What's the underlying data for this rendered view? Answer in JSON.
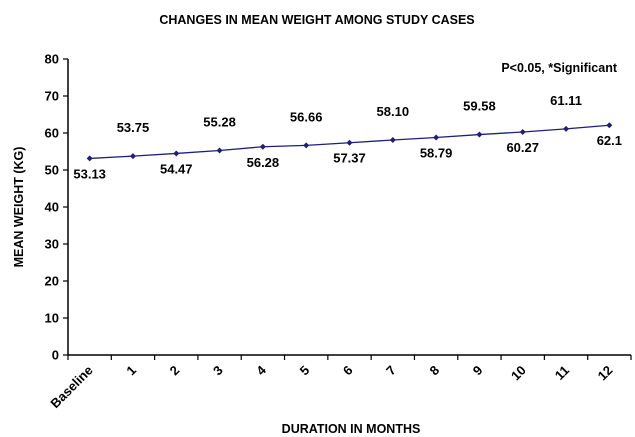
{
  "chart_data": {
    "type": "line",
    "title": "CHANGES IN MEAN WEIGHT AMONG STUDY CASES",
    "xlabel": "DURATION IN MONTHS",
    "ylabel": "MEAN WEIGHT (KG)",
    "annotation": "P<0.05, *Significant",
    "categories": [
      "Baseline",
      "1",
      "2",
      "3",
      "4",
      "5",
      "6",
      "7",
      "8",
      "9",
      "10",
      "11",
      "12"
    ],
    "series": [
      {
        "values": [
          53.13,
          53.75,
          54.47,
          55.28,
          56.28,
          56.66,
          57.37,
          58.1,
          58.79,
          59.58,
          60.27,
          61.11,
          62.1
        ],
        "labels": [
          "53.13",
          "53.75",
          "54.47",
          "55.28",
          "56.28",
          "56.66",
          "57.37",
          "58.10",
          "58.79",
          "59.58",
          "60.27",
          "61.11",
          "62.1"
        ],
        "label_positions": [
          "below",
          "above",
          "below",
          "above",
          "below",
          "above",
          "below",
          "above",
          "below",
          "above",
          "below",
          "above",
          "below"
        ],
        "color": "#1f1f7a",
        "marker": "diamond"
      }
    ],
    "ylim": [
      0,
      80
    ],
    "yticks": [
      0,
      10,
      20,
      30,
      40,
      50,
      60,
      70,
      80
    ],
    "grid": false,
    "legend": "none"
  }
}
